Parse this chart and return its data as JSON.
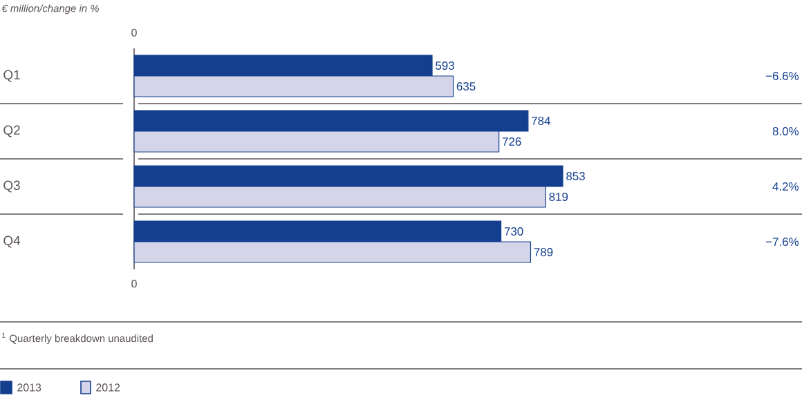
{
  "chart_data": {
    "type": "bar",
    "orientation": "horizontal",
    "data_labels": true,
    "title": "€ million/change in %",
    "categories": [
      "Q1",
      "Q2",
      "Q3",
      "Q4"
    ],
    "series": [
      {
        "name": "2013",
        "color": "#143f8f",
        "values": [
          593,
          784,
          853,
          730
        ]
      },
      {
        "name": "2012",
        "color": "#d5d5ea",
        "values": [
          635,
          726,
          819,
          789
        ]
      }
    ],
    "legend": "bottom left",
    "annotations": [
      "0",
      "0",
      "$^{1}$ Quarterly breakdown unaudited",
      "−6.6%",
      "8.0%",
      "4.2%",
      "−7.6%"
    ]
  }
}
